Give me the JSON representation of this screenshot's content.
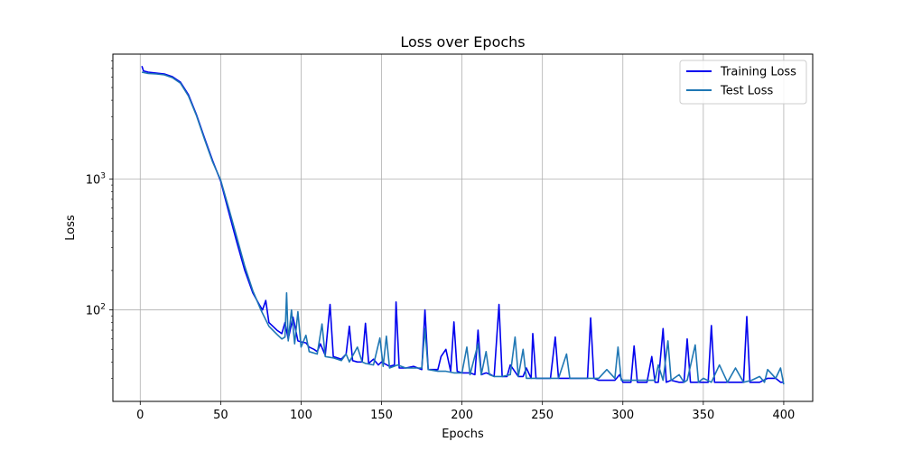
{
  "chart_data": {
    "type": "line",
    "title": "Loss over Epochs",
    "xlabel": "Epochs",
    "ylabel": "Loss",
    "xlim": [
      -17,
      418
    ],
    "ylim": [
      20,
      9000
    ],
    "yscale": "log",
    "grid": true,
    "legend_position": "top-right",
    "x_ticks": [
      0,
      50,
      100,
      150,
      200,
      250,
      300,
      350,
      400
    ],
    "y_ticks": [
      {
        "value": 100,
        "base": "10",
        "exp": "2"
      },
      {
        "value": 1000,
        "base": "10",
        "exp": "3"
      }
    ],
    "series": [
      {
        "name": "Training Loss",
        "color": "#0000ee",
        "points": [
          [
            1,
            7300
          ],
          [
            2,
            6700
          ],
          [
            5,
            6550
          ],
          [
            10,
            6450
          ],
          [
            15,
            6350
          ],
          [
            20,
            6050
          ],
          [
            25,
            5500
          ],
          [
            30,
            4400
          ],
          [
            35,
            3100
          ],
          [
            40,
            2050
          ],
          [
            45,
            1380
          ],
          [
            50,
            960
          ],
          [
            55,
            560
          ],
          [
            60,
            330
          ],
          [
            65,
            200
          ],
          [
            70,
            135
          ],
          [
            74,
            110
          ],
          [
            76,
            100
          ],
          [
            78,
            118
          ],
          [
            80,
            80
          ],
          [
            85,
            70
          ],
          [
            88,
            66
          ],
          [
            90,
            80
          ],
          [
            92,
            60
          ],
          [
            95,
            88
          ],
          [
            98,
            58
          ],
          [
            100,
            57
          ],
          [
            103,
            56
          ],
          [
            105,
            52
          ],
          [
            108,
            50
          ],
          [
            110,
            48
          ],
          [
            112,
            55
          ],
          [
            115,
            45
          ],
          [
            118,
            110
          ],
          [
            120,
            44
          ],
          [
            125,
            42
          ],
          [
            128,
            46
          ],
          [
            130,
            75
          ],
          [
            132,
            41
          ],
          [
            135,
            40
          ],
          [
            138,
            40
          ],
          [
            140,
            79
          ],
          [
            142,
            39
          ],
          [
            145,
            42
          ],
          [
            148,
            38
          ],
          [
            150,
            40
          ],
          [
            155,
            37
          ],
          [
            158,
            38
          ],
          [
            159,
            115
          ],
          [
            161,
            36
          ],
          [
            165,
            36
          ],
          [
            170,
            37
          ],
          [
            175,
            35
          ],
          [
            177,
            100
          ],
          [
            179,
            35
          ],
          [
            185,
            35
          ],
          [
            187,
            44
          ],
          [
            190,
            50
          ],
          [
            193,
            34
          ],
          [
            195,
            81
          ],
          [
            197,
            34
          ],
          [
            200,
            33
          ],
          [
            205,
            33
          ],
          [
            208,
            32
          ],
          [
            210,
            70
          ],
          [
            212,
            32
          ],
          [
            215,
            33
          ],
          [
            218,
            32
          ],
          [
            220,
            31
          ],
          [
            223,
            110
          ],
          [
            225,
            31
          ],
          [
            228,
            31
          ],
          [
            230,
            38
          ],
          [
            235,
            31
          ],
          [
            238,
            31
          ],
          [
            240,
            36
          ],
          [
            243,
            30
          ],
          [
            244,
            66
          ],
          [
            246,
            30
          ],
          [
            250,
            30
          ],
          [
            255,
            30
          ],
          [
            258,
            62
          ],
          [
            260,
            30
          ],
          [
            265,
            30
          ],
          [
            270,
            30
          ],
          [
            275,
            30
          ],
          [
            278,
            30
          ],
          [
            280,
            87
          ],
          [
            282,
            30
          ],
          [
            285,
            29
          ],
          [
            290,
            29
          ],
          [
            295,
            29
          ],
          [
            298,
            32
          ],
          [
            300,
            28
          ],
          [
            305,
            28
          ],
          [
            307,
            53
          ],
          [
            309,
            28
          ],
          [
            315,
            28
          ],
          [
            318,
            44
          ],
          [
            320,
            28
          ],
          [
            322,
            28
          ],
          [
            325,
            72
          ],
          [
            327,
            28
          ],
          [
            330,
            29
          ],
          [
            335,
            28
          ],
          [
            338,
            28
          ],
          [
            340,
            60
          ],
          [
            342,
            28
          ],
          [
            345,
            28
          ],
          [
            350,
            28
          ],
          [
            353,
            28
          ],
          [
            355,
            76
          ],
          [
            357,
            28
          ],
          [
            360,
            28
          ],
          [
            365,
            28
          ],
          [
            370,
            28
          ],
          [
            375,
            28
          ],
          [
            377,
            89
          ],
          [
            379,
            28
          ],
          [
            385,
            28
          ],
          [
            390,
            30
          ],
          [
            395,
            30
          ],
          [
            398,
            28
          ],
          [
            400,
            28
          ]
        ]
      },
      {
        "name": "Test Loss",
        "color": "#1f77b4",
        "points": [
          [
            1,
            6550
          ],
          [
            5,
            6400
          ],
          [
            10,
            6350
          ],
          [
            15,
            6250
          ],
          [
            20,
            5950
          ],
          [
            25,
            5400
          ],
          [
            30,
            4300
          ],
          [
            35,
            3050
          ],
          [
            40,
            2000
          ],
          [
            45,
            1350
          ],
          [
            50,
            980
          ],
          [
            55,
            600
          ],
          [
            60,
            360
          ],
          [
            65,
            215
          ],
          [
            70,
            140
          ],
          [
            75,
            100
          ],
          [
            80,
            75
          ],
          [
            85,
            65
          ],
          [
            88,
            60
          ],
          [
            90,
            62
          ],
          [
            91,
            135
          ],
          [
            92,
            58
          ],
          [
            94,
            100
          ],
          [
            96,
            55
          ],
          [
            98,
            97
          ],
          [
            100,
            52
          ],
          [
            103,
            64
          ],
          [
            105,
            48
          ],
          [
            110,
            46
          ],
          [
            113,
            78
          ],
          [
            115,
            44
          ],
          [
            120,
            43
          ],
          [
            125,
            41
          ],
          [
            128,
            46
          ],
          [
            130,
            40
          ],
          [
            135,
            52
          ],
          [
            138,
            40
          ],
          [
            140,
            39
          ],
          [
            145,
            38
          ],
          [
            149,
            61
          ],
          [
            151,
            37
          ],
          [
            153,
            63
          ],
          [
            155,
            36
          ],
          [
            160,
            38
          ],
          [
            165,
            36
          ],
          [
            170,
            36
          ],
          [
            175,
            36
          ],
          [
            177,
            72
          ],
          [
            179,
            35
          ],
          [
            185,
            34
          ],
          [
            190,
            34
          ],
          [
            195,
            33
          ],
          [
            200,
            33
          ],
          [
            203,
            52
          ],
          [
            205,
            32
          ],
          [
            210,
            55
          ],
          [
            212,
            32
          ],
          [
            215,
            48
          ],
          [
            217,
            32
          ],
          [
            220,
            31
          ],
          [
            225,
            31
          ],
          [
            230,
            32
          ],
          [
            233,
            62
          ],
          [
            235,
            31
          ],
          [
            238,
            50
          ],
          [
            240,
            30
          ],
          [
            245,
            30
          ],
          [
            250,
            30
          ],
          [
            255,
            30
          ],
          [
            260,
            30
          ],
          [
            265,
            46
          ],
          [
            267,
            30
          ],
          [
            270,
            30
          ],
          [
            275,
            30
          ],
          [
            280,
            30
          ],
          [
            285,
            30
          ],
          [
            290,
            35
          ],
          [
            295,
            30
          ],
          [
            297,
            52
          ],
          [
            299,
            29
          ],
          [
            305,
            29
          ],
          [
            310,
            29
          ],
          [
            315,
            29
          ],
          [
            320,
            29
          ],
          [
            322,
            38
          ],
          [
            325,
            29
          ],
          [
            328,
            58
          ],
          [
            330,
            29
          ],
          [
            335,
            32
          ],
          [
            338,
            28
          ],
          [
            340,
            29
          ],
          [
            345,
            54
          ],
          [
            347,
            28
          ],
          [
            350,
            30
          ],
          [
            355,
            28
          ],
          [
            360,
            38
          ],
          [
            365,
            28
          ],
          [
            370,
            36
          ],
          [
            375,
            28
          ],
          [
            380,
            29
          ],
          [
            385,
            31
          ],
          [
            388,
            28
          ],
          [
            390,
            35
          ],
          [
            395,
            30
          ],
          [
            398,
            36
          ],
          [
            400,
            27
          ]
        ]
      }
    ]
  }
}
